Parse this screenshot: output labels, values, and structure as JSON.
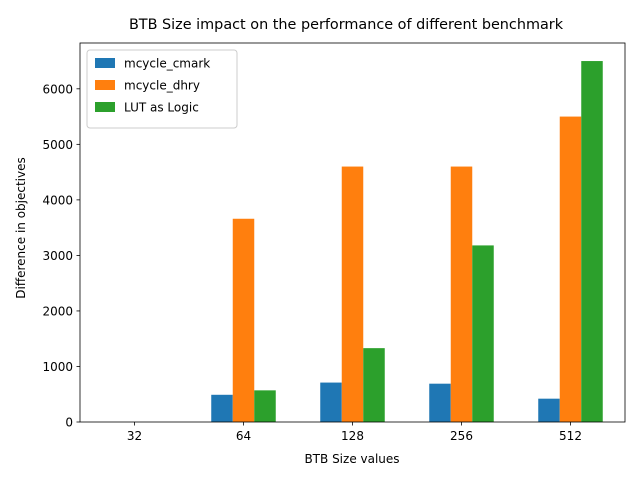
{
  "chart_data": {
    "type": "bar",
    "title": "BTB Size impact on the performance of different benchmark",
    "xlabel": "BTB Size values",
    "ylabel": "Difference in objectives",
    "categories": [
      "32",
      "64",
      "128",
      "256",
      "512"
    ],
    "series": [
      {
        "name": "mcycle_cmark",
        "color": "#1f77b4",
        "values": [
          0,
          490,
          710,
          690,
          420
        ]
      },
      {
        "name": "mcycle_dhry",
        "color": "#ff7f0e",
        "values": [
          0,
          3660,
          4600,
          4600,
          5500
        ]
      },
      {
        "name": "LUT as Logic",
        "color": "#2ca02c",
        "values": [
          0,
          570,
          1330,
          3180,
          6500
        ]
      }
    ],
    "ylim": [
      0,
      6825
    ],
    "yticks": [
      0,
      1000,
      2000,
      3000,
      4000,
      5000,
      6000
    ],
    "grid": false,
    "legend": "top-left"
  }
}
